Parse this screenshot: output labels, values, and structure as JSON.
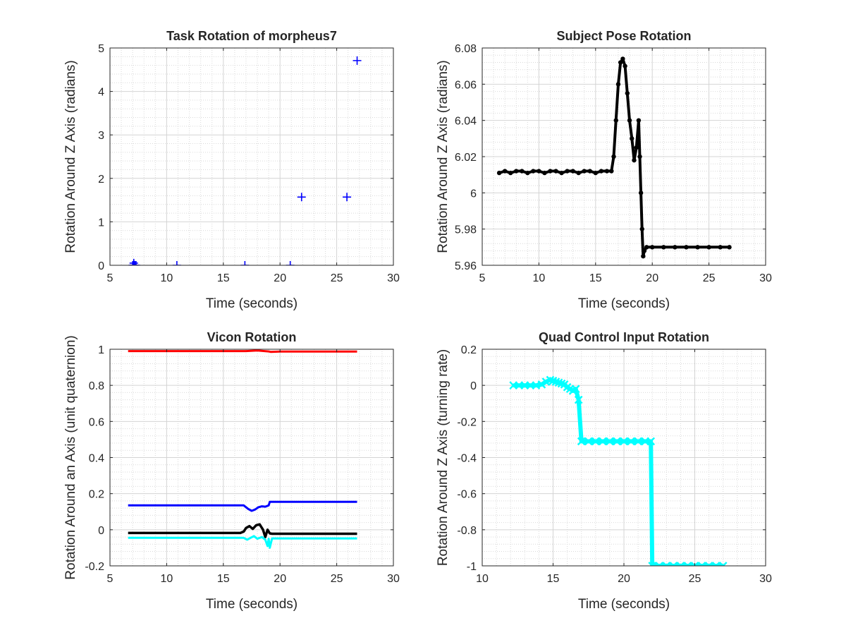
{
  "chart_data": [
    {
      "type": "scatter",
      "title": "Task Rotation of morpheus7",
      "xlabel": "Time (seconds)",
      "ylabel": "Rotation Around Z Axis (radians)",
      "xlim": [
        5,
        30
      ],
      "ylim": [
        0,
        5
      ],
      "xticks": [
        5,
        10,
        15,
        20,
        25,
        30
      ],
      "yticks": [
        0,
        1,
        2,
        3,
        4,
        5
      ],
      "grid": true,
      "minor_grid": true,
      "series": [
        {
          "marker": "plus",
          "color": "#0000ff",
          "points": [
            [
              7.0,
              0
            ],
            [
              7.1,
              0
            ],
            [
              7.2,
              0
            ],
            [
              7.3,
              0
            ],
            [
              7.1,
              0.05
            ],
            [
              10.9,
              0
            ],
            [
              16.9,
              0
            ],
            [
              20.9,
              0
            ],
            [
              21.9,
              1.57
            ],
            [
              25.9,
              1.57
            ],
            [
              26.8,
              4.71
            ]
          ]
        }
      ]
    },
    {
      "type": "scatter",
      "title": "Subject Pose Rotation",
      "xlabel": "Time (seconds)",
      "ylabel": "Rotation Around Z Axis (radians)",
      "xlim": [
        5,
        30
      ],
      "ylim": [
        5.96,
        6.08
      ],
      "xticks": [
        5,
        10,
        15,
        20,
        25,
        30
      ],
      "yticks": [
        5.96,
        5.98,
        6,
        6.02,
        6.04,
        6.06,
        6.08
      ],
      "grid": true,
      "minor_grid": true,
      "series": [
        {
          "marker": "dot",
          "color": "#000000",
          "x": [
            6.5,
            7,
            7.5,
            8,
            8.5,
            9,
            9.5,
            10,
            10.5,
            11,
            11.5,
            12,
            12.5,
            13,
            13.5,
            14,
            14.5,
            15,
            15.5,
            16,
            16.4,
            16.6,
            16.8,
            17,
            17.2,
            17.4,
            17.6,
            17.8,
            18,
            18.2,
            18.4,
            18.6,
            18.8,
            18.9,
            19,
            19.1,
            19.2,
            19.3,
            19.5,
            20,
            21,
            22,
            23,
            24,
            25,
            26,
            26.8
          ],
          "y": [
            6.011,
            6.012,
            6.011,
            6.012,
            6.012,
            6.011,
            6.012,
            6.012,
            6.011,
            6.012,
            6.012,
            6.011,
            6.012,
            6.012,
            6.011,
            6.012,
            6.012,
            6.011,
            6.012,
            6.012,
            6.012,
            6.02,
            6.04,
            6.06,
            6.072,
            6.074,
            6.07,
            6.055,
            6.04,
            6.03,
            6.018,
            6.025,
            6.04,
            6.02,
            6.0,
            5.98,
            5.965,
            5.968,
            5.97,
            5.97,
            5.97,
            5.97,
            5.97,
            5.97,
            5.97,
            5.97,
            5.97
          ]
        }
      ]
    },
    {
      "type": "line",
      "title": "Vicon Rotation",
      "xlabel": "Time (seconds)",
      "ylabel": "Rotation Around an Axis (unit quaternion)",
      "xlim": [
        5,
        30
      ],
      "ylim": [
        -0.2,
        1
      ],
      "xticks": [
        5,
        10,
        15,
        20,
        25,
        30
      ],
      "yticks": [
        -0.2,
        0,
        0.2,
        0.4,
        0.6,
        0.8,
        1
      ],
      "grid": true,
      "minor_grid": true,
      "series": [
        {
          "color": "#ff0000",
          "x": [
            6.6,
            10,
            15,
            17,
            18,
            19,
            19.2,
            20,
            25,
            26.8
          ],
          "y": [
            0.99,
            0.99,
            0.99,
            0.99,
            0.993,
            0.988,
            0.985,
            0.987,
            0.987,
            0.987
          ]
        },
        {
          "color": "#0000ff",
          "x": [
            6.6,
            10,
            15,
            16.8,
            17.2,
            17.5,
            17.8,
            18.1,
            18.4,
            18.7,
            19.0,
            19.1,
            20,
            25,
            26.8
          ],
          "y": [
            0.135,
            0.135,
            0.135,
            0.135,
            0.115,
            0.105,
            0.112,
            0.125,
            0.13,
            0.128,
            0.135,
            0.155,
            0.155,
            0.155,
            0.155
          ],
          "width": 3
        },
        {
          "color": "#000000",
          "x": [
            6.6,
            10,
            15,
            16.5,
            16.8,
            17.0,
            17.3,
            17.6,
            17.9,
            18.2,
            18.5,
            18.7,
            18.9,
            19.1,
            19.3,
            20,
            25,
            26.8
          ],
          "y": [
            -0.018,
            -0.018,
            -0.018,
            -0.018,
            -0.01,
            0.01,
            0.02,
            0.005,
            0.025,
            0.03,
            0.0,
            -0.04,
            0.0,
            -0.02,
            -0.022,
            -0.022,
            -0.022,
            -0.022
          ],
          "width": 3.5
        },
        {
          "color": "#00ffff",
          "x": [
            6.6,
            10,
            15,
            16.8,
            17.1,
            17.4,
            17.7,
            18.0,
            18.4,
            18.7,
            18.9,
            19.0,
            19.1,
            19.3,
            20,
            25,
            26.8
          ],
          "y": [
            -0.045,
            -0.045,
            -0.045,
            -0.045,
            -0.055,
            -0.045,
            -0.035,
            -0.05,
            -0.04,
            -0.055,
            -0.09,
            -0.05,
            -0.1,
            -0.048,
            -0.048,
            -0.048,
            -0.048
          ],
          "width": 3
        }
      ]
    },
    {
      "type": "scatter",
      "title": "Quad Control Input Rotation",
      "xlabel": "Time (seconds)",
      "ylabel": "Rotation Around Z Axis (turning rate)",
      "xlim": [
        10,
        30
      ],
      "ylim": [
        -1,
        0.2
      ],
      "xticks": [
        10,
        15,
        20,
        25,
        30
      ],
      "yticks": [
        -1,
        -0.8,
        -0.6,
        -0.4,
        -0.2,
        0,
        0.2
      ],
      "grid": true,
      "minor_grid": true,
      "series": [
        {
          "marker": "x",
          "color": "#00ffff",
          "x": [
            12.2,
            12.6,
            13,
            13.4,
            13.8,
            14.2,
            14.5,
            14.8,
            15.0,
            15.2,
            15.4,
            15.6,
            15.8,
            16.0,
            16.2,
            16.4,
            16.6,
            16.8,
            17.0,
            17.5,
            18,
            18.5,
            19,
            19.5,
            20,
            20.5,
            21,
            21.5,
            21.9,
            22.0,
            22.5,
            23,
            23.5,
            24,
            24.5,
            25,
            25.5,
            26,
            26.5,
            27
          ],
          "y": [
            0,
            0,
            0,
            0,
            0,
            0.005,
            0.02,
            0.03,
            0.025,
            0.02,
            0.015,
            0.01,
            0.005,
            -0.01,
            -0.02,
            -0.03,
            -0.02,
            -0.08,
            -0.31,
            -0.31,
            -0.31,
            -0.31,
            -0.31,
            -0.31,
            -0.31,
            -0.31,
            -0.31,
            -0.31,
            -0.31,
            -1,
            -1,
            -1,
            -1,
            -1,
            -1,
            -1,
            -1,
            -1,
            -1,
            -1
          ]
        }
      ]
    }
  ]
}
